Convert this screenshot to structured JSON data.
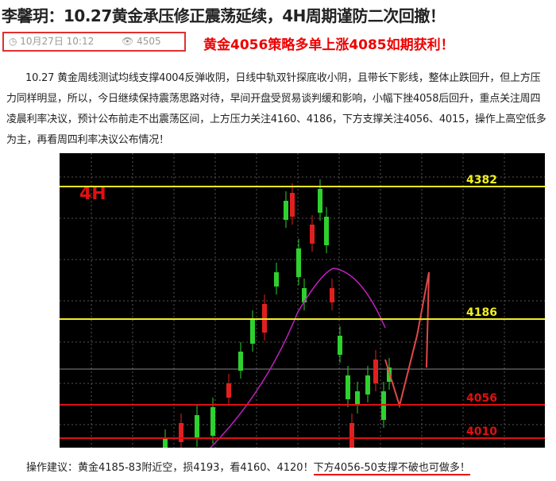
{
  "header": {
    "title": "李馨玥：10.27黄金承压修正震荡延续，4H周期谨防二次回撤！",
    "date": "10月27日 10:12",
    "views": "4505",
    "highlight": "黄金4056策略多单上涨4085如期获利！"
  },
  "body": {
    "paragraph": "10.27 黄金周线测试均线支撑4004反弹收阴，日线中轨双针探底收小阴，且带长下影线，整体止跌回升，但上方压力同样明显，所以，今日继续保持震荡思路对待，早间开盘受贸易谈判缓和影响，小幅下挫4058后回升，重点关注周四凌晨利率决议，预计公布前走不出震荡区间，上方压力关注4160、4186，下方支撑关注4056、4015，操作上高空低多为主，再看周四利率决议公布情况！"
  },
  "figure": {
    "label": "4H",
    "levels": [
      "4382",
      "4186",
      "4056",
      "4010"
    ]
  },
  "footer": {
    "advice": "操作建议：黄金4185-83附近空，损4193，看4160、4120！",
    "emphasis": "下方4056-50支撑不破也可做多！"
  }
}
